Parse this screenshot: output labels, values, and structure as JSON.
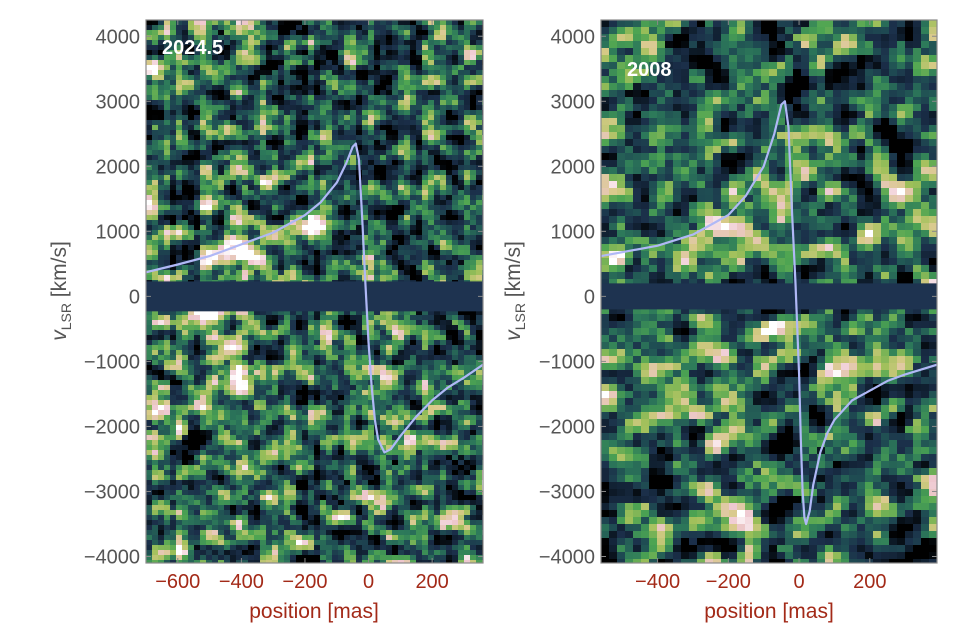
{
  "figure": {
    "colors": {
      "background": "#1b2f4a",
      "band": "#1e3350",
      "curve": "#b0b8f6",
      "frame": "#8a8a8a",
      "y_text": "#555555",
      "x_text": "#a32a18",
      "epoch_text": "#ffffff",
      "colormap": [
        "#000000",
        "#0f1e2e",
        "#1b2f4a",
        "#1f4e53",
        "#2d7a5a",
        "#4da452",
        "#9fc05a",
        "#d7ca87",
        "#eec7cf",
        "#ffffff"
      ]
    }
  },
  "chart_data": [
    {
      "type": "heatmap",
      "epoch_label": "2024.5",
      "xlabel": "position [mas]",
      "ylabel_main": "v",
      "ylabel_sub": "LSR",
      "ylabel_unit": " [km/s]",
      "xlim": [
        -700,
        360
      ],
      "ylim": [
        -4100,
        4250
      ],
      "xticks": [
        -600,
        -400,
        -200,
        0,
        200
      ],
      "xtick_labels": [
        "−600",
        "−400",
        "−200",
        "0",
        "200"
      ],
      "yticks": [
        4000,
        3000,
        2000,
        1000,
        0,
        -1000,
        -2000,
        -3000,
        -4000
      ],
      "ytick_labels": [
        "4000",
        "3000",
        "2000",
        "1000",
        "0",
        "−1000",
        "−2000",
        "−3000",
        "−4000"
      ],
      "masked_velocity_band": [
        -230,
        230
      ],
      "bright_features": [
        {
          "x": -420,
          "y": 700,
          "intensity": 1.0
        },
        {
          "x": -200,
          "y": 1050,
          "intensity": 1.0
        },
        {
          "x": -520,
          "y": -270,
          "intensity": 0.85
        },
        {
          "x": -680,
          "y": 3500,
          "intensity": 0.75
        },
        {
          "x": -420,
          "y": -1200,
          "intensity": 0.65
        },
        {
          "x": -660,
          "y": -1700,
          "intensity": 0.7
        }
      ],
      "model_curve": {
        "x": [
          -700,
          -600,
          -500,
          -400,
          -300,
          -200,
          -150,
          -100,
          -70,
          -50,
          -40,
          -30,
          -20,
          -10,
          0,
          10,
          20,
          30,
          50,
          70,
          100,
          150,
          200,
          250,
          300,
          360
        ],
        "y": [
          370,
          490,
          620,
          800,
          980,
          1250,
          1450,
          1750,
          2050,
          2300,
          2350,
          2100,
          1200,
          200,
          -700,
          -1400,
          -1900,
          -2200,
          -2400,
          -2350,
          -2150,
          -1850,
          -1600,
          -1400,
          -1250,
          -1050
        ]
      }
    },
    {
      "type": "heatmap",
      "epoch_label": "2008",
      "xlabel": "position [mas]",
      "ylabel_main": "v",
      "ylabel_sub": "LSR",
      "ylabel_unit": " [km/s]",
      "xlim": [
        -560,
        390
      ],
      "ylim": [
        -4100,
        4250
      ],
      "xticks": [
        -400,
        -200,
        0,
        200
      ],
      "xtick_labels": [
        "−400",
        "−200",
        "0",
        "200"
      ],
      "yticks": [
        4000,
        3000,
        2000,
        1000,
        0,
        -1000,
        -2000,
        -3000,
        -4000
      ],
      "ytick_labels": [
        "4000",
        "3000",
        "2000",
        "1000",
        "0",
        "−1000",
        "−2000",
        "−3000",
        "−4000"
      ],
      "masked_velocity_band": [
        -200,
        200
      ],
      "bright_features": [
        {
          "x": -230,
          "y": 1150,
          "intensity": 1.0
        },
        {
          "x": -510,
          "y": 580,
          "intensity": 0.85
        },
        {
          "x": 150,
          "y": -1200,
          "intensity": 0.6
        },
        {
          "x": -40,
          "y": -450,
          "intensity": 0.55
        },
        {
          "x": -520,
          "y": 3700,
          "intensity": 0.45
        },
        {
          "x": 370,
          "y": -3200,
          "intensity": 0.4
        }
      ],
      "model_curve": {
        "x": [
          -560,
          -500,
          -400,
          -300,
          -200,
          -150,
          -100,
          -70,
          -50,
          -40,
          -30,
          -20,
          -10,
          0,
          5,
          10,
          15,
          20,
          30,
          40,
          60,
          80,
          100,
          150,
          200,
          250,
          300,
          390
        ],
        "y": [
          620,
          680,
          780,
          950,
          1250,
          1550,
          2000,
          2500,
          2950,
          3000,
          2600,
          1300,
          200,
          -1200,
          -2200,
          -3000,
          -3400,
          -3500,
          -3300,
          -2900,
          -2400,
          -2100,
          -1900,
          -1600,
          -1450,
          -1300,
          -1200,
          -1050
        ]
      }
    }
  ]
}
